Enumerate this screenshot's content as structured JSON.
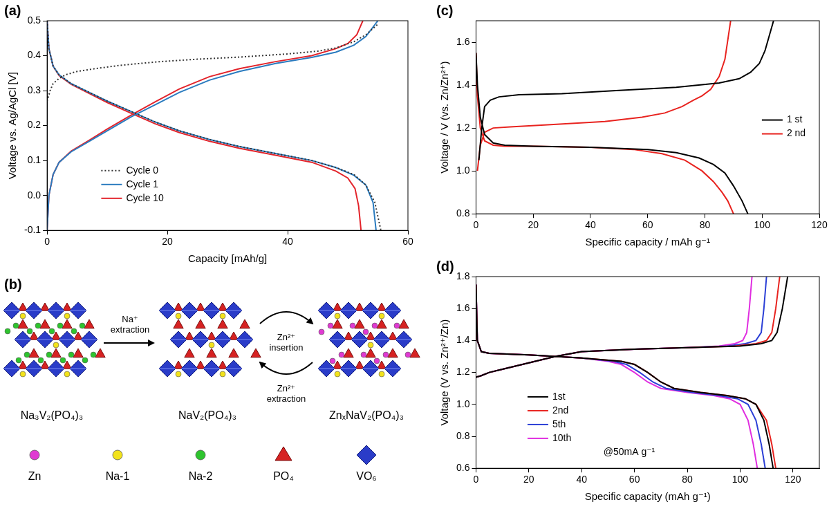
{
  "chart_data": [
    {
      "type": "line",
      "panel_label": "(a)",
      "x_label": "Capacity [mAh/g]",
      "y_label": "Voltage vs. Ag/AgCl [V]",
      "xlim": [
        0,
        60
      ],
      "xticks": [
        0,
        20,
        40,
        60
      ],
      "ylim": [
        -0.1,
        0.5
      ],
      "yticks": [
        -0.1,
        {
          "value": 0,
          "label": "0.0"
        },
        0.1,
        0.2,
        0.3,
        0.4,
        0.5
      ],
      "grid": false,
      "legend": "lower left",
      "series": [
        {
          "name": "Cycle 0",
          "color": "#333333",
          "line_style": "dotted",
          "x": [
            0,
            0.5,
            1,
            2,
            3,
            5,
            8,
            12,
            18,
            25,
            32,
            40,
            45,
            48,
            51,
            53,
            55,
            null,
            0,
            0.3,
            1,
            2,
            4,
            7,
            10,
            14,
            18,
            22,
            27,
            32,
            38,
            44,
            48,
            51,
            53,
            54.5,
            55.5
          ],
          "values": [
            0.27,
            0.3,
            0.32,
            0.335,
            0.345,
            0.355,
            0.363,
            0.372,
            0.382,
            0.39,
            0.396,
            0.405,
            0.413,
            0.422,
            0.44,
            0.46,
            0.49,
            null,
            0.5,
            0.42,
            0.37,
            0.345,
            0.32,
            0.295,
            0.27,
            0.24,
            0.21,
            0.185,
            0.16,
            0.14,
            0.12,
            0.1,
            0.08,
            0.06,
            0.03,
            -0.02,
            -0.1
          ]
        },
        {
          "name": "Cycle 1",
          "color": "#2a7bbf",
          "line_style": "solid",
          "x": [
            0,
            0.3,
            1,
            2,
            4,
            7,
            10,
            14,
            18,
            22,
            27,
            32,
            38,
            44,
            48,
            51,
            53,
            55,
            null,
            0,
            0.3,
            1,
            2,
            4,
            7,
            10,
            14,
            18,
            22,
            27,
            32,
            38,
            44,
            48,
            51,
            53,
            54.2,
            54.7
          ],
          "values": [
            -0.1,
            0.0,
            0.06,
            0.095,
            0.125,
            0.155,
            0.185,
            0.225,
            0.26,
            0.295,
            0.33,
            0.355,
            0.378,
            0.395,
            0.41,
            0.43,
            0.455,
            0.5,
            null,
            0.5,
            0.42,
            0.37,
            0.345,
            0.32,
            0.295,
            0.27,
            0.24,
            0.21,
            0.185,
            0.16,
            0.14,
            0.12,
            0.1,
            0.08,
            0.058,
            0.03,
            -0.02,
            -0.1
          ]
        },
        {
          "name": "Cycle 10",
          "color": "#e3242b",
          "line_style": "solid",
          "x": [
            0,
            0.3,
            1,
            2,
            4,
            7,
            10,
            14,
            18,
            22,
            27,
            32,
            38,
            44,
            48,
            50,
            51.5,
            52.5,
            null,
            0,
            0.3,
            1,
            2,
            4,
            7,
            10,
            14,
            18,
            22,
            27,
            32,
            38,
            44,
            48,
            50,
            51.2,
            51.8,
            52.2
          ],
          "values": [
            -0.1,
            0.0,
            0.06,
            0.095,
            0.127,
            0.158,
            0.19,
            0.23,
            0.268,
            0.305,
            0.34,
            0.363,
            0.383,
            0.4,
            0.42,
            0.435,
            0.46,
            0.5,
            null,
            0.5,
            0.42,
            0.37,
            0.343,
            0.318,
            0.292,
            0.266,
            0.235,
            0.205,
            0.18,
            0.155,
            0.135,
            0.115,
            0.095,
            0.07,
            0.05,
            0.02,
            -0.03,
            -0.1
          ]
        }
      ]
    },
    {
      "type": "line",
      "panel_label": "(c)",
      "x_label": "Specific capacity / mAh g⁻¹",
      "y_label": "Voltage / V (vs. Zn/Zn²⁺)",
      "xlim": [
        0,
        120
      ],
      "xticks": [
        0,
        20,
        40,
        60,
        80,
        100,
        120
      ],
      "ylim": [
        0.8,
        1.7
      ],
      "yticks": [
        0.8,
        {
          "value": 1,
          "label": "1.0"
        },
        1.2,
        1.4,
        1.6
      ],
      "grid": false,
      "legend": "center right",
      "series": [
        {
          "name": "1 st",
          "color": "#000000",
          "line_style": "solid",
          "x": [
            1,
            2,
            3,
            5,
            8,
            15,
            30,
            50,
            70,
            85,
            92,
            96,
            99,
            101,
            102.5,
            104,
            null,
            0,
            0.5,
            1.5,
            3,
            6,
            10,
            20,
            40,
            60,
            70,
            78,
            83,
            87,
            90,
            93,
            95
          ],
          "values": [
            1.05,
            1.2,
            1.3,
            1.33,
            1.345,
            1.355,
            1.36,
            1.375,
            1.39,
            1.41,
            1.43,
            1.46,
            1.5,
            1.56,
            1.63,
            1.7,
            null,
            1.55,
            1.4,
            1.25,
            1.17,
            1.13,
            1.12,
            1.115,
            1.11,
            1.1,
            1.085,
            1.06,
            1.03,
            0.99,
            0.93,
            0.86,
            0.8
          ]
        },
        {
          "name": "2 nd",
          "color": "#e8231f",
          "line_style": "solid",
          "x": [
            0.5,
            1.5,
            3,
            6,
            12,
            25,
            45,
            58,
            66,
            72,
            76,
            79,
            82,
            85,
            87,
            89,
            null,
            0,
            0.5,
            1.5,
            3,
            6,
            10,
            20,
            40,
            55,
            65,
            73,
            79,
            83,
            86,
            88,
            90
          ],
          "values": [
            1.0,
            1.12,
            1.18,
            1.2,
            1.205,
            1.215,
            1.23,
            1.25,
            1.27,
            1.3,
            1.33,
            1.35,
            1.38,
            1.44,
            1.52,
            1.7,
            null,
            1.55,
            1.35,
            1.2,
            1.14,
            1.12,
            1.115,
            1.115,
            1.11,
            1.1,
            1.08,
            1.05,
            1.0,
            0.95,
            0.9,
            0.86,
            0.8
          ]
        }
      ]
    },
    {
      "type": "line",
      "panel_label": "(d)",
      "x_label": "Specific capacity (mAh g⁻¹)",
      "y_label": "Voltage (V vs. Zn²⁺/Zn)",
      "xlim": [
        0,
        130
      ],
      "xticks": [
        0,
        20,
        40,
        60,
        80,
        100,
        120
      ],
      "ylim": [
        0.6,
        1.8
      ],
      "yticks": [
        0.6,
        0.8,
        {
          "value": 1,
          "label": "1.0"
        },
        1.2,
        1.4,
        1.6,
        1.8
      ],
      "grid": false,
      "legend": "lower left",
      "annotations": [
        {
          "text": "@50mA g⁻¹",
          "x": 58,
          "y": 0.7
        }
      ],
      "series": [
        {
          "name": "1st",
          "color": "#000000",
          "line_style": "solid",
          "x": [
            0,
            2,
            5,
            10,
            20,
            30,
            40,
            60,
            80,
            100,
            108,
            112,
            114,
            116,
            118,
            null,
            0,
            0.5,
            2,
            5,
            20,
            40,
            55,
            60,
            65,
            70,
            75,
            85,
            95,
            102,
            106,
            109,
            111,
            112.5
          ],
          "values": [
            1.17,
            1.18,
            1.2,
            1.22,
            1.26,
            1.3,
            1.33,
            1.345,
            1.355,
            1.365,
            1.38,
            1.4,
            1.45,
            1.6,
            1.8,
            null,
            1.75,
            1.4,
            1.33,
            1.32,
            1.31,
            1.29,
            1.27,
            1.25,
            1.2,
            1.14,
            1.1,
            1.075,
            1.055,
            1.035,
            1.0,
            0.9,
            0.75,
            0.6
          ]
        },
        {
          "name": "2nd",
          "color": "#e8231f",
          "line_style": "solid",
          "x": [
            0,
            2,
            5,
            10,
            20,
            30,
            40,
            60,
            80,
            98,
            106,
            110,
            112,
            113.5,
            115,
            null,
            0,
            0.5,
            2,
            5,
            20,
            40,
            55,
            60,
            65,
            70,
            75,
            85,
            95,
            102,
            106,
            110,
            112,
            113.5
          ],
          "values": [
            1.17,
            1.18,
            1.2,
            1.22,
            1.26,
            1.3,
            1.33,
            1.345,
            1.355,
            1.365,
            1.38,
            1.4,
            1.45,
            1.6,
            1.8,
            null,
            1.75,
            1.4,
            1.33,
            1.32,
            1.31,
            1.29,
            1.27,
            1.25,
            1.2,
            1.14,
            1.1,
            1.075,
            1.055,
            1.035,
            1.0,
            0.9,
            0.75,
            0.6
          ]
        },
        {
          "name": "5th",
          "color": "#2b3fd6",
          "line_style": "solid",
          "x": [
            0,
            2,
            5,
            10,
            20,
            30,
            40,
            60,
            80,
            95,
            102,
            106,
            108,
            109,
            110,
            null,
            0,
            0.5,
            2,
            5,
            20,
            40,
            52,
            57,
            62,
            67,
            72,
            82,
            92,
            99,
            103,
            106,
            108,
            109.5
          ],
          "values": [
            1.17,
            1.18,
            1.2,
            1.22,
            1.26,
            1.3,
            1.33,
            1.345,
            1.355,
            1.365,
            1.38,
            1.4,
            1.45,
            1.6,
            1.8,
            null,
            1.75,
            1.4,
            1.33,
            1.32,
            1.31,
            1.29,
            1.27,
            1.25,
            1.2,
            1.14,
            1.1,
            1.075,
            1.055,
            1.035,
            1.0,
            0.9,
            0.75,
            0.6
          ]
        },
        {
          "name": "10th",
          "color": "#e02ee0",
          "line_style": "solid",
          "x": [
            0,
            2,
            5,
            10,
            20,
            30,
            40,
            60,
            80,
            92,
            98,
            101,
            102.5,
            103.5,
            104.5,
            null,
            0,
            0.5,
            2,
            5,
            20,
            40,
            50,
            55,
            60,
            65,
            70,
            80,
            90,
            96,
            100,
            103,
            105,
            106.5
          ],
          "values": [
            1.17,
            1.18,
            1.2,
            1.22,
            1.26,
            1.3,
            1.33,
            1.345,
            1.355,
            1.365,
            1.38,
            1.4,
            1.45,
            1.6,
            1.8,
            null,
            1.75,
            1.4,
            1.33,
            1.32,
            1.31,
            1.29,
            1.27,
            1.25,
            1.2,
            1.14,
            1.1,
            1.075,
            1.055,
            1.035,
            1.0,
            0.9,
            0.75,
            0.6
          ]
        }
      ]
    }
  ],
  "diagram": {
    "panel_label": "(b)",
    "structures": [
      {
        "formula": "Na₃V₂(PO₄)₃",
        "ions": [
          "Na-1",
          "Na-2"
        ]
      },
      {
        "formula": "NaV₂(PO₄)₃",
        "ions": [
          "Na-1"
        ]
      },
      {
        "formula": "ZnₓNaV₂(PO₄)₃",
        "ions": [
          "Zn",
          "Na-1"
        ]
      }
    ],
    "arrows": [
      "Na⁺ extraction",
      "Zn²⁺ insertion",
      "Zn²⁺ extraction"
    ],
    "legend": [
      {
        "label": "Zn",
        "color": "#e03ad2",
        "shape": "sphere"
      },
      {
        "label": "Na-1",
        "color": "#f2e21c",
        "shape": "sphere"
      },
      {
        "label": "Na-2",
        "color": "#2ec42e",
        "shape": "sphere"
      },
      {
        "label": "PO₄",
        "color": "#d62222",
        "shape": "tetrahedron"
      },
      {
        "label": "VO₆",
        "color": "#2a3cc8",
        "shape": "octahedron"
      }
    ]
  }
}
